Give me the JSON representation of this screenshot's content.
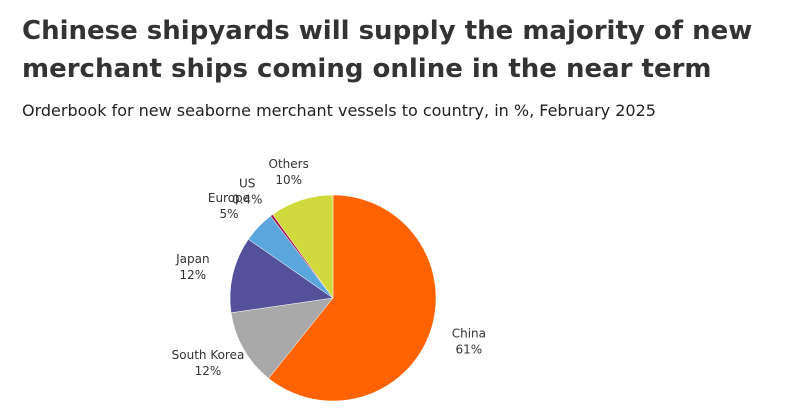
{
  "chart_data": {
    "type": "pie",
    "title": "Chinese shipyards will supply the majority of new merchant ships coming online in the near term",
    "subtitle": "Orderbook for new seaborne merchant vessels to country, in %, February 2025",
    "categories": [
      "China",
      "South Korea",
      "Japan",
      "Europe",
      "US",
      "Others"
    ],
    "values": [
      61,
      12,
      12,
      5,
      0.4,
      10
    ],
    "value_labels": [
      "61%",
      "12%",
      "12%",
      "5%",
      "0.4%",
      "10%"
    ],
    "colors": [
      "#ff6200",
      "#a9a9a9",
      "#525199",
      "#5ba6dd",
      "#a3124a",
      "#d1da3c"
    ]
  }
}
